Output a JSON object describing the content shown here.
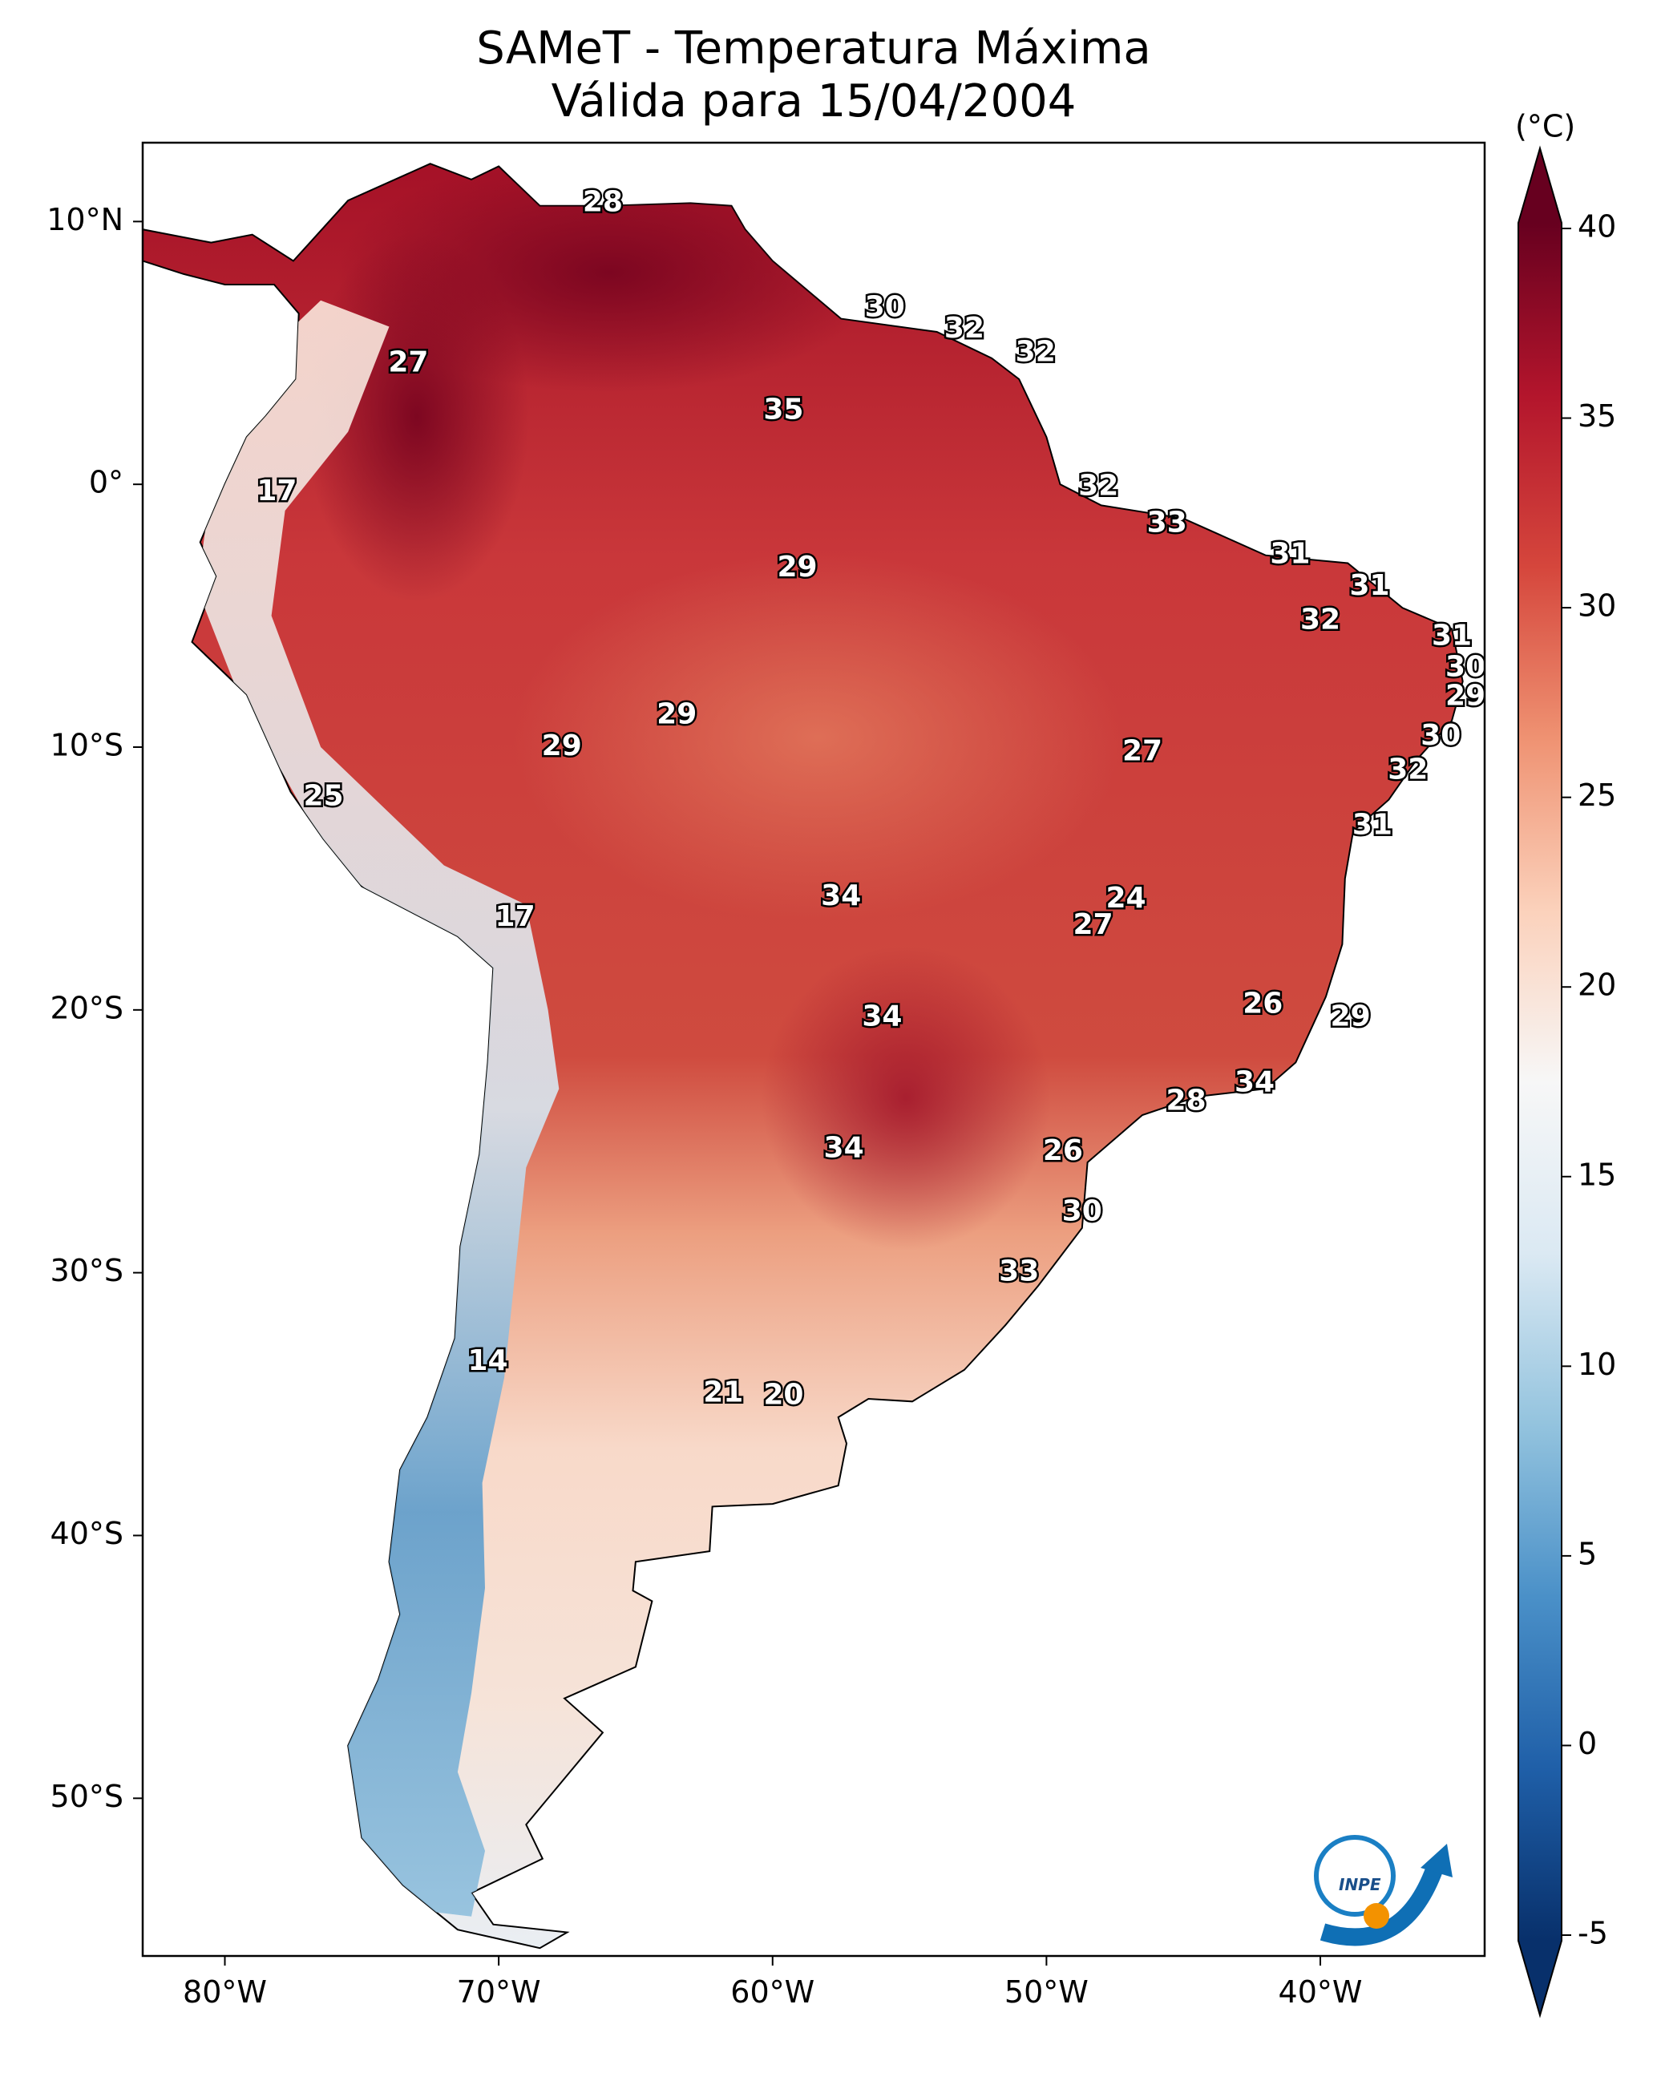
{
  "title": {
    "line1": "SAMeT - Temperatura Máxima",
    "line2": "Válida para 15/04/2004"
  },
  "colorbar": {
    "unit": "(°C)",
    "ticks": [
      "-5",
      "0",
      "5",
      "10",
      "15",
      "20",
      "25",
      "30",
      "35",
      "40"
    ],
    "range": [
      -5,
      40
    ],
    "colors": [
      "#08306b",
      "#1f5fa8",
      "#4a90c8",
      "#93c3de",
      "#dbe9f3",
      "#f7f7f7",
      "#fbd1bb",
      "#ef9272",
      "#d5463c",
      "#b3152c",
      "#67001f"
    ]
  },
  "axes": {
    "lon_ticks": [
      "80°W",
      "70°W",
      "60°W",
      "50°W",
      "40°W"
    ],
    "lat_ticks": [
      "10°N",
      "0°",
      "10°S",
      "20°S",
      "30°S",
      "40°S",
      "50°S"
    ]
  },
  "temperature_labels": [
    {
      "lon": -66.2,
      "lat": 10.7,
      "value": "28"
    },
    {
      "lon": -55.9,
      "lat": 6.7,
      "value": "30"
    },
    {
      "lon": -53.0,
      "lat": 5.9,
      "value": "32"
    },
    {
      "lon": -50.4,
      "lat": 5.0,
      "value": "32"
    },
    {
      "lon": -73.3,
      "lat": 4.6,
      "value": "27"
    },
    {
      "lon": -59.6,
      "lat": 2.8,
      "value": "35"
    },
    {
      "lon": -78.1,
      "lat": -0.3,
      "value": "17"
    },
    {
      "lon": -48.1,
      "lat": -0.1,
      "value": "32"
    },
    {
      "lon": -45.6,
      "lat": -1.5,
      "value": "33"
    },
    {
      "lon": -41.1,
      "lat": -2.7,
      "value": "31"
    },
    {
      "lon": -59.1,
      "lat": -3.2,
      "value": "29"
    },
    {
      "lon": -38.2,
      "lat": -3.9,
      "value": "31"
    },
    {
      "lon": -40.0,
      "lat": -5.2,
      "value": "32"
    },
    {
      "lon": -35.2,
      "lat": -5.8,
      "value": "31"
    },
    {
      "lon": -34.7,
      "lat": -7.0,
      "value": "30"
    },
    {
      "lon": -34.7,
      "lat": -8.1,
      "value": "29"
    },
    {
      "lon": -63.5,
      "lat": -8.8,
      "value": "29"
    },
    {
      "lon": -35.6,
      "lat": -9.6,
      "value": "30"
    },
    {
      "lon": -67.7,
      "lat": -10.0,
      "value": "29"
    },
    {
      "lon": -46.5,
      "lat": -10.2,
      "value": "27"
    },
    {
      "lon": -36.8,
      "lat": -10.9,
      "value": "32"
    },
    {
      "lon": -76.4,
      "lat": -11.9,
      "value": "25"
    },
    {
      "lon": -38.1,
      "lat": -13.0,
      "value": "31"
    },
    {
      "lon": -57.5,
      "lat": -15.7,
      "value": "34"
    },
    {
      "lon": -47.1,
      "lat": -15.8,
      "value": "24"
    },
    {
      "lon": -48.3,
      "lat": -16.8,
      "value": "27"
    },
    {
      "lon": -69.4,
      "lat": -16.5,
      "value": "17"
    },
    {
      "lon": -42.1,
      "lat": -19.8,
      "value": "26"
    },
    {
      "lon": -56.0,
      "lat": -20.3,
      "value": "34"
    },
    {
      "lon": -38.9,
      "lat": -20.3,
      "value": "29"
    },
    {
      "lon": -42.4,
      "lat": -22.8,
      "value": "34"
    },
    {
      "lon": -44.9,
      "lat": -23.5,
      "value": "28"
    },
    {
      "lon": -57.4,
      "lat": -25.3,
      "value": "34"
    },
    {
      "lon": -49.4,
      "lat": -25.4,
      "value": "26"
    },
    {
      "lon": -48.7,
      "lat": -27.7,
      "value": "30"
    },
    {
      "lon": -51.0,
      "lat": -30.0,
      "value": "33"
    },
    {
      "lon": -70.4,
      "lat": -33.4,
      "value": "14"
    },
    {
      "lon": -61.8,
      "lat": -34.6,
      "value": "21"
    },
    {
      "lon": -59.6,
      "lat": -34.7,
      "value": "20"
    }
  ],
  "logo": {
    "text": "INPE"
  }
}
